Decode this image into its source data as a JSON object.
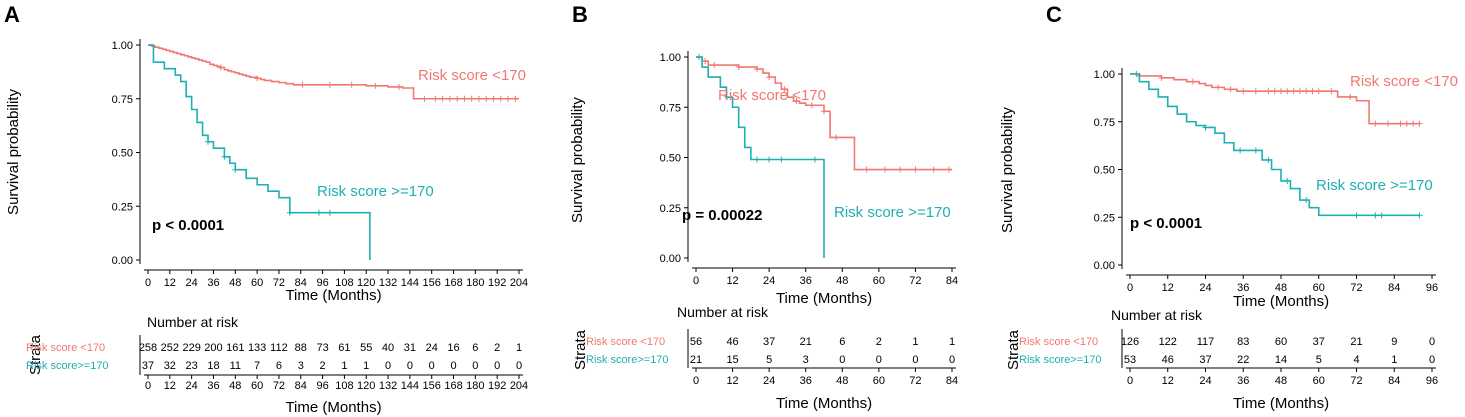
{
  "colors": {
    "low": "#F07870",
    "high": "#1FAFB3"
  },
  "chart_data": [
    {
      "panel": "A",
      "type": "line",
      "subtype": "kaplan-meier",
      "ylabel": "Survival probability",
      "xlabel": "Time (Months)",
      "xlim": [
        0,
        204
      ],
      "ylim": [
        0,
        1
      ],
      "xticks": [
        0,
        12,
        24,
        36,
        48,
        60,
        72,
        84,
        96,
        108,
        120,
        132,
        144,
        156,
        168,
        180,
        192,
        204
      ],
      "yticks": [
        "0.00",
        "0.25",
        "0.50",
        "0.75",
        "1.00"
      ],
      "pvalue": "p < 0.0001",
      "series": [
        {
          "name": "Risk score <170",
          "color": "low",
          "x": [
            0,
            2,
            4,
            6,
            8,
            10,
            12,
            14,
            16,
            18,
            20,
            22,
            24,
            26,
            28,
            30,
            32,
            34,
            36,
            38,
            40,
            42,
            44,
            46,
            48,
            50,
            52,
            54,
            56,
            58,
            60,
            62,
            64,
            66,
            68,
            70,
            72,
            76,
            80,
            86,
            96,
            108,
            120,
            132,
            140,
            144,
            146,
            204
          ],
          "y": [
            1.0,
            0.995,
            0.99,
            0.985,
            0.98,
            0.975,
            0.97,
            0.965,
            0.96,
            0.955,
            0.95,
            0.945,
            0.94,
            0.935,
            0.93,
            0.925,
            0.92,
            0.91,
            0.905,
            0.9,
            0.895,
            0.885,
            0.88,
            0.875,
            0.87,
            0.865,
            0.86,
            0.855,
            0.85,
            0.85,
            0.845,
            0.84,
            0.835,
            0.835,
            0.83,
            0.83,
            0.825,
            0.82,
            0.815,
            0.815,
            0.815,
            0.815,
            0.81,
            0.805,
            0.8,
            0.8,
            0.75,
            0.75
          ],
          "censor_x": [
            40,
            60,
            85,
            100,
            112,
            125,
            138,
            152,
            158,
            162,
            166,
            170,
            174,
            178,
            182,
            186,
            190,
            194,
            198,
            202
          ]
        },
        {
          "name": "Risk score >=170",
          "color": "high",
          "x": [
            0,
            3,
            6,
            9,
            12,
            15,
            18,
            21,
            24,
            27,
            30,
            33,
            36,
            42,
            45,
            48,
            54,
            60,
            66,
            72,
            78,
            120,
            122
          ],
          "y": [
            1.0,
            0.92,
            0.92,
            0.89,
            0.89,
            0.86,
            0.83,
            0.76,
            0.7,
            0.64,
            0.58,
            0.55,
            0.52,
            0.48,
            0.45,
            0.42,
            0.38,
            0.35,
            0.32,
            0.29,
            0.22,
            0.22,
            0.0
          ],
          "censor_x": [
            33,
            42,
            48,
            78,
            94,
            100
          ]
        }
      ],
      "risk_table": {
        "title": "Number at risk",
        "strata_title": "Strata",
        "xlabel": "Time (Months)",
        "rows": [
          {
            "label": "Risk score <170",
            "color": "low",
            "values": [
              "258",
              "252",
              "229",
              "200",
              "161",
              "133",
              "112",
              "88",
              "73",
              "61",
              "55",
              "40",
              "31",
              "24",
              "16",
              "6",
              "2",
              "1"
            ]
          },
          {
            "label": "Risk score>=170",
            "color": "high",
            "values": [
              "37",
              "32",
              "23",
              "18",
              "11",
              "7",
              "6",
              "3",
              "2",
              "1",
              "1",
              "0",
              "0",
              "0",
              "0",
              "0",
              "0",
              "0"
            ]
          }
        ]
      }
    },
    {
      "panel": "B",
      "type": "line",
      "subtype": "kaplan-meier",
      "ylabel": "Survival probability",
      "xlabel": "Time (Months)",
      "xlim": [
        0,
        84
      ],
      "ylim": [
        0,
        1
      ],
      "xticks": [
        0,
        12,
        24,
        36,
        48,
        60,
        72,
        84
      ],
      "yticks": [
        "0.00",
        "0.25",
        "0.50",
        "0.75",
        "1.00"
      ],
      "pvalue": "p = 0.00022",
      "series": [
        {
          "name": "Risk score <170",
          "color": "low",
          "x": [
            0,
            2,
            4,
            10,
            14,
            18,
            20,
            22,
            24,
            26,
            28,
            30,
            32,
            34,
            36,
            40,
            42,
            44,
            48,
            52,
            84
          ],
          "y": [
            1.0,
            0.98,
            0.96,
            0.96,
            0.95,
            0.95,
            0.94,
            0.92,
            0.9,
            0.87,
            0.84,
            0.8,
            0.78,
            0.77,
            0.76,
            0.76,
            0.73,
            0.6,
            0.6,
            0.44,
            0.44
          ],
          "censor_x": [
            3,
            6,
            14,
            20,
            24,
            29,
            33,
            38,
            42,
            46,
            56,
            62,
            67,
            72,
            78,
            83
          ]
        },
        {
          "name": "Risk score >=170",
          "color": "high",
          "x": [
            0,
            2,
            4,
            6,
            8,
            10,
            12,
            14,
            16,
            18,
            21,
            24,
            40,
            42
          ],
          "y": [
            1.0,
            0.95,
            0.9,
            0.9,
            0.85,
            0.8,
            0.75,
            0.65,
            0.55,
            0.49,
            0.49,
            0.49,
            0.49,
            0.0
          ],
          "censor_x": [
            1,
            20,
            24,
            28,
            39
          ]
        }
      ],
      "risk_table": {
        "title": "Number at risk",
        "strata_title": "Strata",
        "xlabel": "Time (Months)",
        "rows": [
          {
            "label": "Risk score <170",
            "color": "low",
            "values": [
              "56",
              "46",
              "37",
              "21",
              "6",
              "2",
              "1",
              "1"
            ]
          },
          {
            "label": "Risk score>=170",
            "color": "high",
            "values": [
              "21",
              "15",
              "5",
              "3",
              "0",
              "0",
              "0",
              "0"
            ]
          }
        ]
      }
    },
    {
      "panel": "C",
      "type": "line",
      "subtype": "kaplan-meier",
      "ylabel": "Survival probability",
      "xlabel": "Time (Months)",
      "xlim": [
        0,
        96
      ],
      "ylim": [
        0,
        1
      ],
      "xticks": [
        0,
        12,
        24,
        36,
        48,
        60,
        72,
        84,
        96
      ],
      "yticks": [
        "0.00",
        "0.25",
        "0.50",
        "0.75",
        "1.00"
      ],
      "pvalue": "p < 0.0001",
      "series": [
        {
          "name": "Risk score <170",
          "color": "low",
          "x": [
            0,
            3,
            6,
            10,
            14,
            18,
            20,
            22,
            24,
            26,
            28,
            30,
            32,
            34,
            36,
            40,
            44,
            48,
            52,
            60,
            66,
            70,
            72,
            74,
            76,
            92
          ],
          "y": [
            1.0,
            0.99,
            0.99,
            0.98,
            0.97,
            0.96,
            0.96,
            0.95,
            0.94,
            0.93,
            0.93,
            0.92,
            0.92,
            0.91,
            0.91,
            0.91,
            0.91,
            0.91,
            0.91,
            0.91,
            0.88,
            0.88,
            0.86,
            0.86,
            0.74,
            0.74
          ],
          "censor_x": [
            3,
            10,
            20,
            28,
            32,
            36,
            40,
            44,
            46,
            48,
            50,
            52,
            54,
            56,
            58,
            60,
            64,
            70,
            78,
            82,
            86,
            88,
            90,
            92
          ]
        },
        {
          "name": "Risk score >=170",
          "color": "high",
          "x": [
            0,
            3,
            6,
            9,
            12,
            15,
            18,
            21,
            24,
            27,
            30,
            33,
            36,
            39,
            42,
            45,
            48,
            51,
            54,
            57,
            60,
            92
          ],
          "y": [
            1.0,
            0.96,
            0.92,
            0.88,
            0.83,
            0.79,
            0.75,
            0.73,
            0.72,
            0.69,
            0.64,
            0.6,
            0.6,
            0.6,
            0.55,
            0.5,
            0.44,
            0.4,
            0.34,
            0.3,
            0.26,
            0.26
          ],
          "censor_x": [
            2,
            24,
            35,
            40,
            44,
            50,
            56,
            72,
            78,
            80,
            92
          ]
        }
      ],
      "risk_table": {
        "title": "Number at risk",
        "strata_title": "Strata",
        "xlabel": "Time (Months)",
        "rows": [
          {
            "label": "Risk score <170",
            "color": "low",
            "values": [
              "126",
              "122",
              "117",
              "83",
              "60",
              "37",
              "21",
              "9",
              "0"
            ]
          },
          {
            "label": "Risk score>=170",
            "color": "high",
            "values": [
              "53",
              "46",
              "37",
              "22",
              "14",
              "5",
              "4",
              "1",
              "0"
            ]
          }
        ]
      }
    }
  ]
}
